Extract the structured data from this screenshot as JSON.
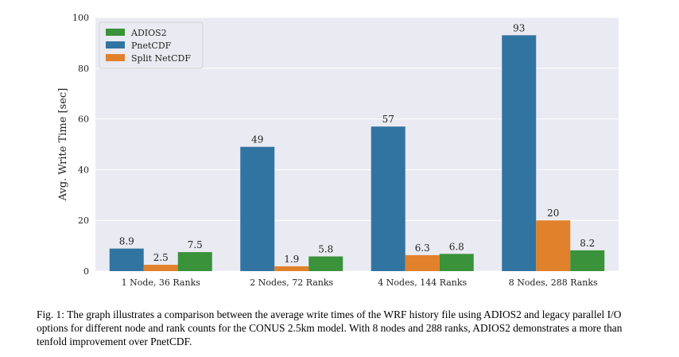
{
  "chart_data": {
    "type": "bar",
    "title": "",
    "xlabel": "",
    "ylabel": "Avg. Write Time [sec]",
    "ylim": [
      0,
      100
    ],
    "yticks": [
      0,
      20,
      40,
      60,
      80,
      100
    ],
    "categories": [
      "1 Node, 36 Ranks",
      "2 Nodes, 72 Ranks",
      "4 Nodes, 144 Ranks",
      "8 Nodes, 288 Ranks"
    ],
    "series": [
      {
        "name": "PnetCDF",
        "color": "#3274a1",
        "values": [
          8.9,
          49,
          57,
          93
        ],
        "labels": [
          "8.9",
          "49",
          "57",
          "93"
        ]
      },
      {
        "name": "Split NetCDF",
        "color": "#e1812c",
        "values": [
          2.5,
          1.9,
          6.3,
          20
        ],
        "labels": [
          "2.5",
          "1.9",
          "6.3",
          "20"
        ]
      },
      {
        "name": "ADIOS2",
        "color": "#3a923a",
        "values": [
          7.5,
          5.8,
          6.8,
          8.2
        ],
        "labels": [
          "7.5",
          "5.8",
          "6.8",
          "8.2"
        ]
      }
    ],
    "legend": {
      "position": "top-left",
      "order": [
        "ADIOS2",
        "PnetCDF",
        "Split NetCDF"
      ]
    },
    "grid": true,
    "plot_background": "#eaeaf2"
  },
  "caption": "Fig. 1: The graph illustrates a comparison between the average write times of the WRF history file using ADIOS2 and legacy parallel I/O options for different node and rank counts for the CONUS 2.5km model. With 8 nodes and 288 ranks, ADIOS2 demonstrates a more than tenfold improvement over PnetCDF."
}
